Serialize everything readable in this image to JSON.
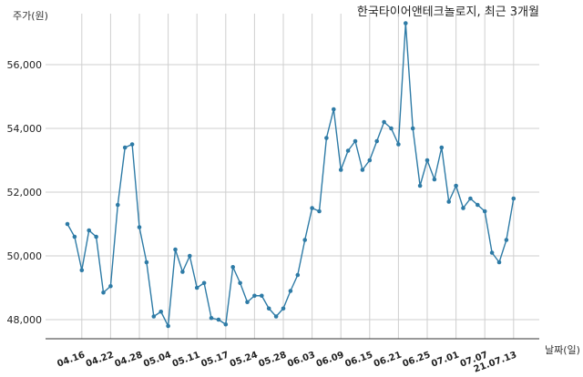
{
  "chart_data": {
    "type": "line",
    "title": "한국타이어앤테크놀로지, 최근 3개월",
    "xlabel": "날짜(일)",
    "ylabel": "주가(원)",
    "ylim": [
      47400,
      57600
    ],
    "yticks": [
      48000,
      50000,
      52000,
      54000,
      56000
    ],
    "ytick_labels": [
      "48,000",
      "50,000",
      "52,000",
      "54,000",
      "56,000"
    ],
    "x_tick_labels": [
      "04.16",
      "04.22",
      "04.28",
      "05.04",
      "05.11",
      "05.17",
      "05.24",
      "05.28",
      "06.03",
      "06.09",
      "06.15",
      "06.21",
      "06.25",
      "07.01",
      "07.07",
      "21.07.13"
    ],
    "x_tick_positions": [
      2,
      6,
      10,
      14,
      18,
      22,
      26,
      30,
      34,
      38,
      42,
      46,
      50,
      54,
      58,
      62
    ],
    "grid": true,
    "line_color": "#2e7ba6",
    "series": [
      {
        "values": [
          51000,
          50600,
          49550,
          50800,
          50600,
          48850,
          49050,
          51600,
          53400,
          53500,
          50900,
          49800,
          48100,
          48250,
          47800,
          50200,
          49500,
          50000,
          49000,
          49150,
          48050,
          48000,
          47850,
          49650,
          49150,
          48550,
          48750,
          48750,
          48350,
          48100,
          48350,
          48900,
          49400,
          50500,
          51500,
          51400,
          53700,
          54600,
          52700,
          53300,
          53600,
          52700,
          53000,
          53600,
          54200,
          54000,
          53500,
          57300,
          54000,
          52200,
          53000,
          52400,
          53400,
          51700,
          52200,
          51500,
          51800,
          51600,
          51400,
          50100,
          49800,
          50500,
          51800
        ]
      }
    ]
  }
}
